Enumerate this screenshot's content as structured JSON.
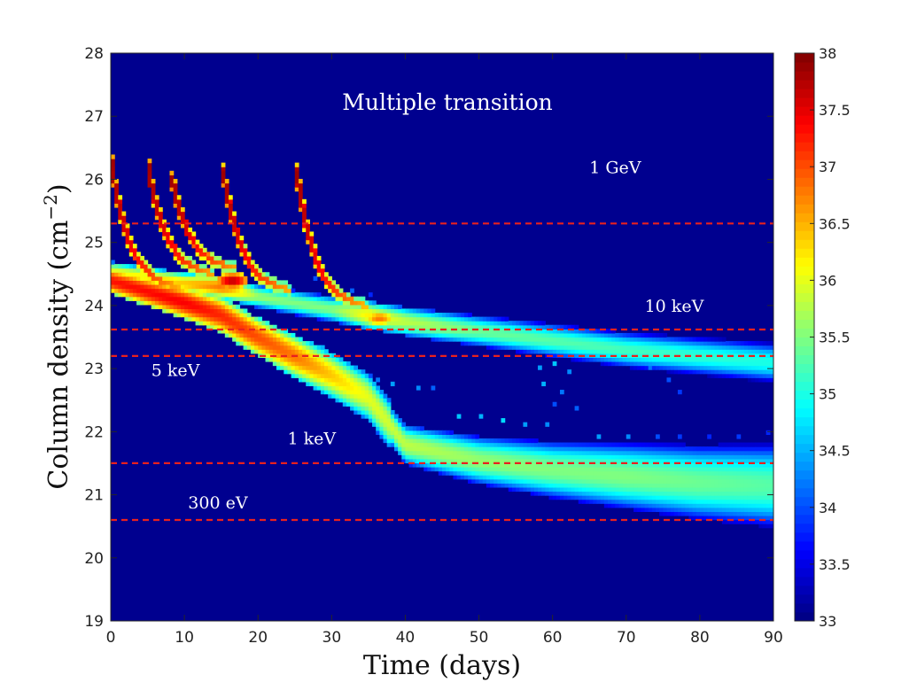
{
  "chart_data": {
    "type": "heatmap",
    "title": "Multiple transition",
    "xlabel": "Time (days)",
    "ylabel": "Column density (cm",
    "ylabel_exponent": "−2",
    "ylabel_close": ")",
    "xlim": [
      0,
      90
    ],
    "ylim": [
      19,
      28
    ],
    "x_ticks": [
      0,
      10,
      20,
      30,
      40,
      50,
      60,
      70,
      80,
      90
    ],
    "y_ticks": [
      19,
      20,
      21,
      22,
      23,
      24,
      25,
      26,
      27,
      28
    ],
    "colorbar": {
      "range": [
        33,
        38
      ],
      "ticks": [
        "33",
        "33.5",
        "34",
        "34.5",
        "35",
        "35.5",
        "36",
        "36.5",
        "37",
        "37.5",
        "38"
      ],
      "colormap": "jet"
    },
    "background_value": 33,
    "reference_lines": [
      {
        "label": "1 GeV",
        "y": 25.3,
        "label_x": 65,
        "label_y": 26.1
      },
      {
        "label": "10 keV",
        "y": 23.62,
        "label_x": 72.5,
        "label_y": 23.9
      },
      {
        "label": "5 keV",
        "y": 23.2,
        "label_x": 5.5,
        "label_y": 22.88
      },
      {
        "label": "1 keV",
        "y": 21.5,
        "label_x": 24,
        "label_y": 21.8
      },
      {
        "label": "300 eV",
        "y": 20.6,
        "label_x": 10.5,
        "label_y": 20.78
      }
    ],
    "line_color": "#e8211f",
    "decay_tracks": [
      {
        "t0": 0,
        "n0": 26.3,
        "n_floor": 24.25
      },
      {
        "t0": 5,
        "n0": 26.25,
        "n_floor": 24.45
      },
      {
        "t0": 8.2,
        "n0": 26.05,
        "n_floor": 24.55
      },
      {
        "t0": 15.2,
        "n0": 26.15,
        "n_floor": 24.2
      },
      {
        "t0": 25.2,
        "n0": 26.15,
        "n_floor": 23.95
      }
    ],
    "main_branch": {
      "x": [
        0,
        10,
        15,
        20,
        25,
        30,
        35,
        40,
        50,
        60,
        70,
        80,
        90
      ],
      "y": [
        24.4,
        24.05,
        23.85,
        23.5,
        23.2,
        22.9,
        22.55,
        21.8,
        21.55,
        21.4,
        21.3,
        21.2,
        21.15
      ],
      "peak": [
        37.3,
        37.4,
        37.2,
        37.0,
        36.8,
        36.4,
        36.0,
        35.8,
        35.6,
        35.5,
        35.5,
        35.4,
        35.3
      ]
    },
    "upper_branch": {
      "x": [
        0,
        10,
        15,
        20,
        25,
        30,
        35,
        40,
        50,
        60,
        70,
        80,
        90
      ],
      "y": [
        24.55,
        24.35,
        24.3,
        24.15,
        24.05,
        23.95,
        23.85,
        23.75,
        23.6,
        23.45,
        23.3,
        23.2,
        23.1
      ],
      "peak": [
        36.0,
        36.4,
        36.8,
        35.6,
        35.5,
        35.5,
        36.2,
        35.8,
        35.4,
        35.3,
        35.2,
        35.1,
        35.0
      ]
    },
    "hot_spots": [
      {
        "x": 16.5,
        "y": 24.4,
        "v": 37.7
      },
      {
        "x": 36.5,
        "y": 23.8,
        "v": 36.8
      }
    ],
    "scatter_cells": [
      {
        "x": 27.5,
        "y": 24.42,
        "v": 34.0
      },
      {
        "x": 30,
        "y": 24.35,
        "v": 33.9
      },
      {
        "x": 32.5,
        "y": 24.25,
        "v": 34.1
      },
      {
        "x": 35,
        "y": 24.2,
        "v": 33.8
      },
      {
        "x": 26.5,
        "y": 23.42,
        "v": 34.6
      },
      {
        "x": 28.5,
        "y": 23.35,
        "v": 34.5
      },
      {
        "x": 36,
        "y": 22.83,
        "v": 34.2
      },
      {
        "x": 38,
        "y": 22.78,
        "v": 34.4
      },
      {
        "x": 41.5,
        "y": 22.72,
        "v": 34.3
      },
      {
        "x": 43.5,
        "y": 22.72,
        "v": 34.1
      },
      {
        "x": 58,
        "y": 23.0,
        "v": 34.4
      },
      {
        "x": 60,
        "y": 23.1,
        "v": 34.6
      },
      {
        "x": 62,
        "y": 22.95,
        "v": 34.3
      },
      {
        "x": 58.5,
        "y": 22.75,
        "v": 34.5
      },
      {
        "x": 61,
        "y": 22.65,
        "v": 34.2
      },
      {
        "x": 60,
        "y": 22.45,
        "v": 34.0
      },
      {
        "x": 63,
        "y": 22.35,
        "v": 34.1
      },
      {
        "x": 71,
        "y": 23.15,
        "v": 34.3
      },
      {
        "x": 73,
        "y": 23.0,
        "v": 34.2
      },
      {
        "x": 75.5,
        "y": 22.85,
        "v": 34.0
      },
      {
        "x": 77,
        "y": 22.65,
        "v": 33.9
      },
      {
        "x": 47,
        "y": 22.22,
        "v": 34.6
      },
      {
        "x": 50,
        "y": 22.25,
        "v": 34.5
      },
      {
        "x": 53,
        "y": 22.2,
        "v": 34.7
      },
      {
        "x": 56,
        "y": 22.15,
        "v": 34.4
      },
      {
        "x": 59,
        "y": 22.1,
        "v": 34.3
      },
      {
        "x": 66,
        "y": 21.92,
        "v": 34.4
      },
      {
        "x": 70,
        "y": 21.95,
        "v": 34.3
      },
      {
        "x": 74,
        "y": 21.9,
        "v": 34.0
      },
      {
        "x": 77,
        "y": 21.92,
        "v": 33.9
      },
      {
        "x": 81,
        "y": 21.92,
        "v": 33.8
      },
      {
        "x": 85,
        "y": 21.9,
        "v": 33.9
      },
      {
        "x": 89,
        "y": 22.02,
        "v": 33.8
      }
    ]
  }
}
